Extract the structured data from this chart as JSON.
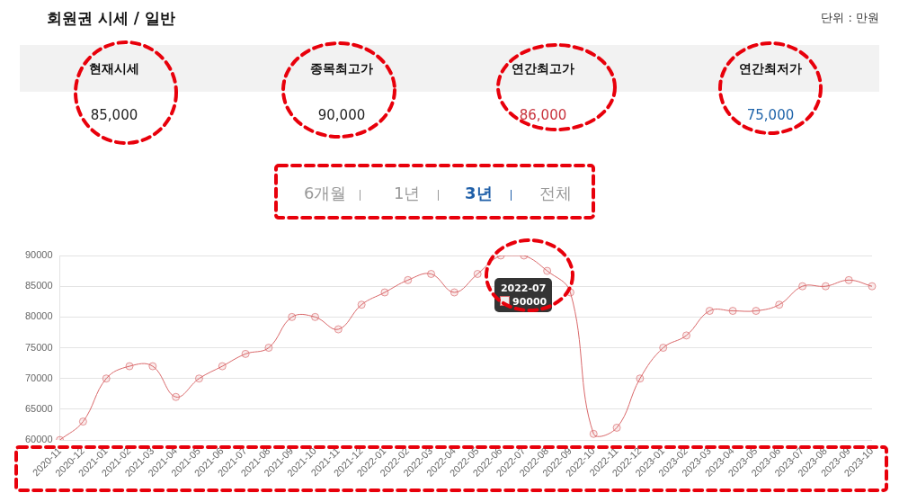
{
  "chart_data": [
    {
      "type": "other",
      "title": "회원권 시세 / 일반",
      "annotations": [
        "단위 : 만원",
        "현재시세",
        "85,000",
        "종목최고가",
        "90,000",
        "연간최고가",
        "86,000",
        "연간최저가",
        "75,000"
      ]
    },
    {
      "type": "line",
      "categories": [
        "2020-11",
        "2020-12",
        "2021-01",
        "2021-02",
        "2021-03",
        "2021-04",
        "2021-05",
        "2021-06",
        "2021-07",
        "2021-08",
        "2021-09",
        "2021-10",
        "2021-11",
        "2021-12",
        "2022-01",
        "2022-02",
        "2022-03",
        "2022-04",
        "2022-05",
        "2022-06",
        "2022-07",
        "2022-08",
        "2022-09",
        "2022-10",
        "2022-11",
        "2022-12",
        "2023-01",
        "2023-02",
        "2023-03",
        "2023-04",
        "2023-05",
        "2023-06",
        "2023-07",
        "2023-08",
        "2023-09",
        "2023-10"
      ],
      "series": [
        {
          "color": "#d9686a",
          "values": [
            60000,
            63000,
            70000,
            72000,
            72000,
            67000,
            70000,
            72000,
            74000,
            75000,
            80000,
            80000,
            78000,
            82000,
            84000,
            86000,
            87000,
            84000,
            87000,
            90000,
            90000,
            87500,
            84000,
            61000,
            62000,
            70000,
            75000,
            77000,
            81000,
            81000,
            81000,
            82000,
            85000,
            85000,
            86000,
            85000
          ]
        }
      ],
      "ylim": [
        60000,
        90000
      ],
      "yticks": [
        60000,
        65000,
        70000,
        75000,
        80000,
        85000,
        90000
      ],
      "grid": "y",
      "legend": false,
      "marker": "circle",
      "line_style": "solid",
      "annotations": [
        "6개월",
        "1년",
        "3년",
        "전체",
        "2022-07",
        "90000"
      ]
    }
  ]
}
